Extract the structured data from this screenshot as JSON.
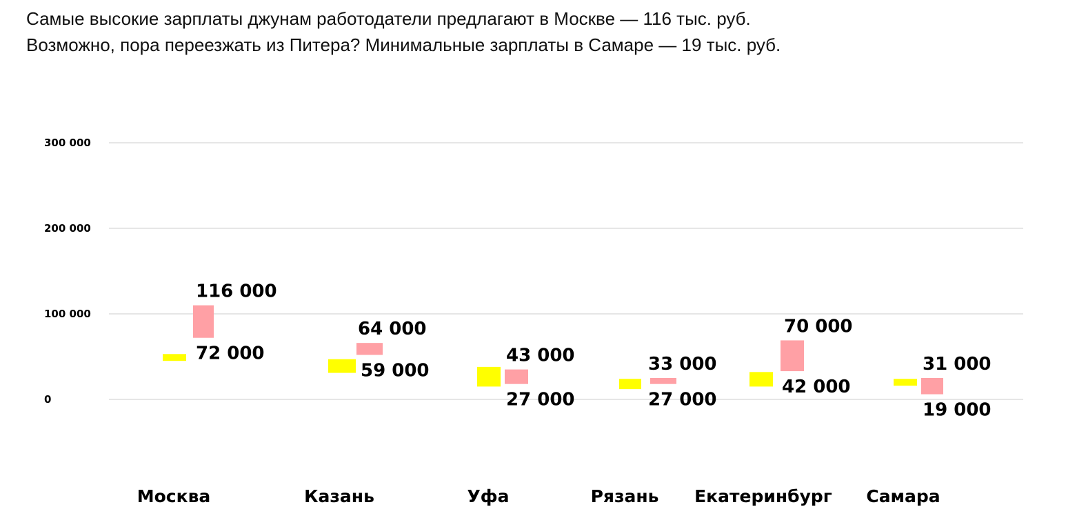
{
  "intro": {
    "line1": "Самые высокие зарплаты джунам работодатели предлагают в Москве — 116 тыс. руб.",
    "line2": "Возможно, пора переезжать из Питера? Минимальные зарплаты в Самаре — 19 тыс. руб."
  },
  "chart_data": {
    "type": "bar",
    "ylim": [
      0,
      300000
    ],
    "yticks": [
      0,
      100000,
      200000,
      300000
    ],
    "ytick_labels": [
      "0",
      "100 000",
      "200 000",
      "300 000"
    ],
    "grid": true,
    "colors": {
      "yellow": "#ffff00",
      "pink": "#ffa0a5",
      "grid": "#cccccc"
    },
    "categories": [
      "Москва",
      "Казань",
      "Уфа",
      "Рязань",
      "Екатеринбург",
      "Самара"
    ],
    "yellow_bars": [
      {
        "low": 45000,
        "high": 53000
      },
      {
        "low": 31000,
        "high": 47000
      },
      {
        "low": 15000,
        "high": 38000
      },
      {
        "low": 12000,
        "high": 24000
      },
      {
        "low": 15000,
        "high": 32000
      },
      {
        "low": 16000,
        "high": 24000
      }
    ],
    "pink_bars": [
      {
        "low": 72000,
        "high": 110000
      },
      {
        "low": 52000,
        "high": 66000
      },
      {
        "low": 18000,
        "high": 35000
      },
      {
        "low": 18000,
        "high": 25000
      },
      {
        "low": 33000,
        "high": 69000
      },
      {
        "low": 6000,
        "high": 25000
      }
    ],
    "upper_labels": [
      "116 000",
      "64 000",
      "43 000",
      "33 000",
      "70 000",
      "31 000"
    ],
    "lower_labels": [
      "72 000",
      "59 000",
      "27 000",
      "27 000",
      "42 000",
      "19 000"
    ]
  }
}
